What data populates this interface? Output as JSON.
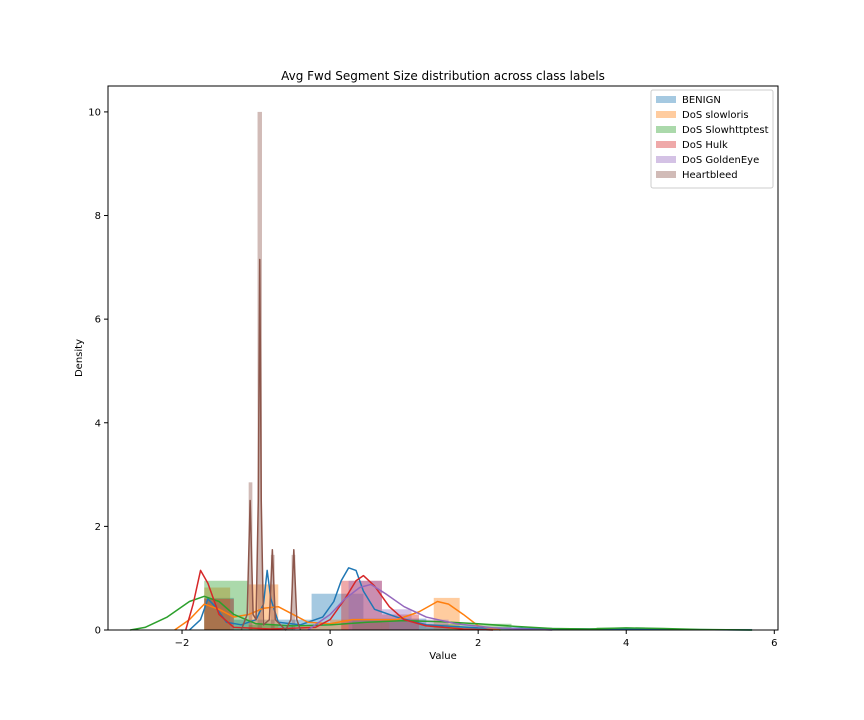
{
  "chart_data": {
    "type": "histogram-kde",
    "title": "Avg Fwd Segment Size distribution across class labels",
    "xlabel": "Value",
    "ylabel": "Density",
    "xlim": [
      -3.0,
      6.05
    ],
    "ylim": [
      0,
      10.5
    ],
    "x_ticks": [
      -2,
      0,
      2,
      4,
      6
    ],
    "x_tick_labels": [
      "−2",
      "0",
      "2",
      "4",
      "6"
    ],
    "y_ticks": [
      0,
      2,
      4,
      6,
      8,
      10
    ],
    "y_tick_labels": [
      "0",
      "2",
      "4",
      "6",
      "8",
      "10"
    ],
    "grid": false,
    "legend_position": "upper right",
    "series": [
      {
        "name": "BENIGN",
        "color": "#1f77b4",
        "hist": [
          {
            "x0": -1.7,
            "x1": -1.3,
            "density": 0.62
          },
          {
            "x0": -1.3,
            "x1": -0.25,
            "density": 0.2
          },
          {
            "x0": -0.25,
            "x1": 0.45,
            "density": 0.7
          },
          {
            "x0": 0.45,
            "x1": 1.3,
            "density": 0.22
          },
          {
            "x0": 1.3,
            "x1": 2.6,
            "density": 0.05
          },
          {
            "x0": 2.6,
            "x1": 5.7,
            "density": 0.02
          }
        ],
        "kde": [
          [
            -1.9,
            0.0
          ],
          [
            -1.75,
            0.2
          ],
          [
            -1.65,
            0.6
          ],
          [
            -1.55,
            0.45
          ],
          [
            -1.4,
            0.15
          ],
          [
            -1.2,
            0.1
          ],
          [
            -1.0,
            0.2
          ],
          [
            -0.9,
            0.5
          ],
          [
            -0.85,
            1.15
          ],
          [
            -0.8,
            0.6
          ],
          [
            -0.7,
            0.15
          ],
          [
            -0.4,
            0.1
          ],
          [
            -0.1,
            0.25
          ],
          [
            0.05,
            0.55
          ],
          [
            0.15,
            0.95
          ],
          [
            0.25,
            1.2
          ],
          [
            0.35,
            1.15
          ],
          [
            0.45,
            0.75
          ],
          [
            0.6,
            0.4
          ],
          [
            0.9,
            0.25
          ],
          [
            1.3,
            0.1
          ],
          [
            2.0,
            0.04
          ],
          [
            3.5,
            0.02
          ],
          [
            5.7,
            0.0
          ]
        ]
      },
      {
        "name": "DoS slowloris",
        "color": "#ff7f0e",
        "hist": [
          {
            "x0": -1.7,
            "x1": -1.35,
            "density": 0.82
          },
          {
            "x0": -1.1,
            "x1": -0.7,
            "density": 0.88
          },
          {
            "x0": -0.4,
            "x1": 0.0,
            "density": 0.08
          },
          {
            "x0": 0.0,
            "x1": 0.3,
            "density": 0.2
          },
          {
            "x0": 0.3,
            "x1": 0.8,
            "density": 0.15
          },
          {
            "x0": 1.4,
            "x1": 1.75,
            "density": 0.62
          }
        ],
        "kde": [
          [
            -2.1,
            0.0
          ],
          [
            -1.9,
            0.2
          ],
          [
            -1.7,
            0.5
          ],
          [
            -1.5,
            0.4
          ],
          [
            -1.3,
            0.25
          ],
          [
            -1.1,
            0.3
          ],
          [
            -0.9,
            0.42
          ],
          [
            -0.7,
            0.45
          ],
          [
            -0.5,
            0.3
          ],
          [
            -0.3,
            0.15
          ],
          [
            0.0,
            0.12
          ],
          [
            0.3,
            0.2
          ],
          [
            0.6,
            0.2
          ],
          [
            0.9,
            0.2
          ],
          [
            1.2,
            0.35
          ],
          [
            1.45,
            0.55
          ],
          [
            1.6,
            0.5
          ],
          [
            1.8,
            0.3
          ],
          [
            2.0,
            0.08
          ],
          [
            2.3,
            0.0
          ]
        ]
      },
      {
        "name": "DoS Slowhttptest",
        "color": "#2ca02c",
        "hist": [
          {
            "x0": -1.7,
            "x1": -1.1,
            "density": 0.95
          },
          {
            "x0": -1.1,
            "x1": -0.5,
            "density": 0.1
          },
          {
            "x0": 0.3,
            "x1": 1.2,
            "density": 0.2
          },
          {
            "x0": 1.2,
            "x1": 2.45,
            "density": 0.12
          },
          {
            "x0": 3.6,
            "x1": 4.25,
            "density": 0.05
          }
        ],
        "kde": [
          [
            -2.7,
            0.0
          ],
          [
            -2.5,
            0.05
          ],
          [
            -2.2,
            0.25
          ],
          [
            -1.9,
            0.55
          ],
          [
            -1.7,
            0.65
          ],
          [
            -1.5,
            0.55
          ],
          [
            -1.3,
            0.3
          ],
          [
            -1.0,
            0.12
          ],
          [
            -0.5,
            0.08
          ],
          [
            0.0,
            0.1
          ],
          [
            0.5,
            0.15
          ],
          [
            1.0,
            0.18
          ],
          [
            1.5,
            0.16
          ],
          [
            2.0,
            0.12
          ],
          [
            2.5,
            0.07
          ],
          [
            3.0,
            0.03
          ],
          [
            3.5,
            0.02
          ],
          [
            4.0,
            0.04
          ],
          [
            4.5,
            0.03
          ],
          [
            5.0,
            0.01
          ],
          [
            5.7,
            0.0
          ]
        ]
      },
      {
        "name": "DoS Hulk",
        "color": "#d62728",
        "hist": [
          {
            "x0": -1.7,
            "x1": -1.3,
            "density": 0.6
          },
          {
            "x0": 0.15,
            "x1": 0.7,
            "density": 0.95
          },
          {
            "x0": 0.7,
            "x1": 1.2,
            "density": 0.3
          }
        ],
        "kde": [
          [
            -1.95,
            0.0
          ],
          [
            -1.85,
            0.5
          ],
          [
            -1.75,
            1.15
          ],
          [
            -1.65,
            0.9
          ],
          [
            -1.5,
            0.3
          ],
          [
            -1.3,
            0.05
          ],
          [
            -0.8,
            0.02
          ],
          [
            -0.2,
            0.05
          ],
          [
            0.0,
            0.2
          ],
          [
            0.2,
            0.6
          ],
          [
            0.35,
            0.95
          ],
          [
            0.45,
            1.05
          ],
          [
            0.6,
            0.85
          ],
          [
            0.8,
            0.45
          ],
          [
            1.0,
            0.2
          ],
          [
            1.3,
            0.08
          ],
          [
            1.8,
            0.02
          ],
          [
            2.2,
            0.0
          ]
        ]
      },
      {
        "name": "DoS GoldenEye",
        "color": "#9467bd",
        "hist": [
          {
            "x0": 0.25,
            "x1": 0.7,
            "density": 0.95
          },
          {
            "x0": 0.7,
            "x1": 1.1,
            "density": 0.4
          },
          {
            "x0": 1.1,
            "x1": 1.6,
            "density": 0.2
          }
        ],
        "kde": [
          [
            -0.3,
            0.0
          ],
          [
            0.0,
            0.3
          ],
          [
            0.2,
            0.6
          ],
          [
            0.4,
            0.82
          ],
          [
            0.55,
            0.88
          ],
          [
            0.75,
            0.7
          ],
          [
            1.0,
            0.45
          ],
          [
            1.3,
            0.25
          ],
          [
            1.7,
            0.12
          ],
          [
            2.2,
            0.04
          ],
          [
            3.0,
            0.0
          ]
        ]
      },
      {
        "name": "Heartbleed",
        "color": "#8c564b",
        "hist": [
          {
            "x0": -1.1,
            "x1": -1.05,
            "density": 2.85
          },
          {
            "x0": -0.98,
            "x1": -0.92,
            "density": 10.0
          },
          {
            "x0": -0.8,
            "x1": -0.75,
            "density": 1.45
          },
          {
            "x0": -0.52,
            "x1": -0.47,
            "density": 1.45
          }
        ],
        "kde": [
          [
            -1.2,
            0.0
          ],
          [
            -1.12,
            0.3
          ],
          [
            -1.08,
            2.5
          ],
          [
            -1.04,
            0.3
          ],
          [
            -1.0,
            0.2
          ],
          [
            -0.97,
            2.5
          ],
          [
            -0.95,
            7.15
          ],
          [
            -0.93,
            2.5
          ],
          [
            -0.9,
            0.1
          ],
          [
            -0.82,
            0.2
          ],
          [
            -0.78,
            1.55
          ],
          [
            -0.74,
            0.2
          ],
          [
            -0.6,
            0.0
          ],
          [
            -0.53,
            0.2
          ],
          [
            -0.49,
            1.55
          ],
          [
            -0.45,
            0.2
          ],
          [
            -0.4,
            0.0
          ]
        ]
      }
    ]
  }
}
